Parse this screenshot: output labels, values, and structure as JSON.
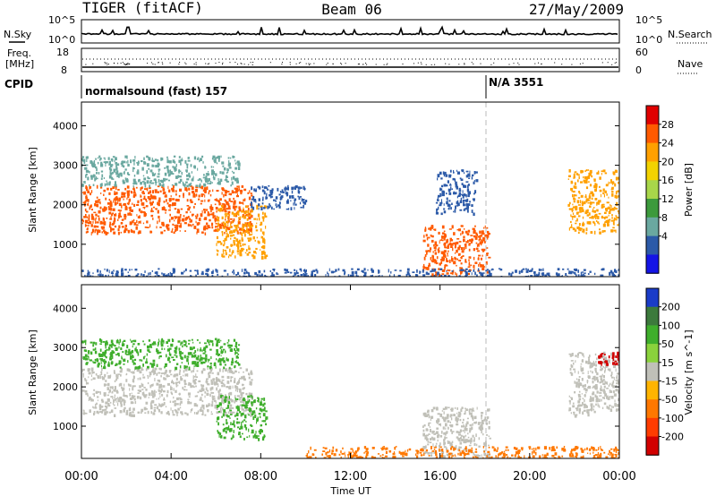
{
  "header": {
    "radar": "TIGER (fitACF)",
    "beam": "Beam 06",
    "date": "27/May/2009"
  },
  "top_panel": {
    "left_label": "N.Sky",
    "right_label": "N.Search",
    "left_ticks": [
      "10^5",
      "10^0"
    ],
    "right_ticks": [
      "10^5",
      "10^0"
    ]
  },
  "freq_panel": {
    "left_label_1": "Freq.",
    "left_label_2": "[MHz]",
    "right_label": "Nave",
    "left_ticks": [
      "18",
      "8"
    ],
    "right_ticks": [
      "60",
      "0"
    ]
  },
  "cpid_panel": {
    "label": "CPID",
    "mode_1": "normalsound (fast) 157",
    "mode_2": "N/A 3551",
    "mode_2_time_hours": 18.0
  },
  "chart_data": [
    {
      "type": "heatmap",
      "title": "",
      "xlabel": "",
      "ylabel": "Slant Range [km]",
      "xlim_hours": [
        0,
        24
      ],
      "ylim": [
        180,
        4600
      ],
      "yticks": [
        "1000",
        "2000",
        "3000",
        "4000"
      ],
      "colorbar": {
        "label": "Power [dB]",
        "ticks": [
          "28",
          "24",
          "20",
          "16",
          "12",
          "8",
          "4"
        ],
        "colors": [
          "#e00000",
          "#ff5a00",
          "#ffa000",
          "#f2d200",
          "#a8d64a",
          "#3c9a3c",
          "#6aa8a0",
          "#2c5aa8",
          "#1414e6"
        ]
      },
      "echo_regions": [
        {
          "t": [
            0.0,
            7.6
          ],
          "range_km": [
            1300,
            2500
          ],
          "level_dB": 28
        },
        {
          "t": [
            0.0,
            7.0
          ],
          "range_km": [
            2500,
            3250
          ],
          "level_dB": 10
        },
        {
          "t": [
            6.0,
            8.2
          ],
          "range_km": [
            700,
            2000
          ],
          "level_dB": 24
        },
        {
          "t": [
            7.5,
            10.0
          ],
          "range_km": [
            1900,
            2500
          ],
          "level_dB": 6
        },
        {
          "t": [
            15.2,
            18.2
          ],
          "range_km": [
            250,
            1500
          ],
          "level_dB": 28
        },
        {
          "t": [
            15.8,
            17.6
          ],
          "range_km": [
            1800,
            2900
          ],
          "level_dB": 6
        },
        {
          "t": [
            21.7,
            24.0
          ],
          "range_km": [
            1300,
            2900
          ],
          "level_dB": 24
        },
        {
          "t": [
            0.0,
            24.0
          ],
          "range_km": [
            200,
            400
          ],
          "level_dB": 4
        }
      ]
    },
    {
      "type": "heatmap",
      "title": "",
      "xlabel": "Time UT",
      "ylabel": "Slant Range [km]",
      "xlim_hours": [
        0,
        24
      ],
      "ylim": [
        180,
        4600
      ],
      "yticks": [
        "1000",
        "2000",
        "3000",
        "4000"
      ],
      "xticks": [
        "00:00",
        "04:00",
        "08:00",
        "12:00",
        "16:00",
        "20:00",
        "00:00"
      ],
      "colorbar": {
        "label": "Velocity [m s^-1]",
        "ticks": [
          "200",
          "100",
          "50",
          "15",
          "-15",
          "-50",
          "-100",
          "-200"
        ],
        "colors": [
          "#1a3cc8",
          "#3c7a3c",
          "#3fae2c",
          "#8ad23c",
          "#c0c0b8",
          "#ffb400",
          "#ff7800",
          "#ff3c00",
          "#d20000"
        ]
      },
      "echo_regions": [
        {
          "t": [
            0.0,
            7.6
          ],
          "range_km": [
            1300,
            2500
          ],
          "velocity": 0
        },
        {
          "t": [
            6.0,
            8.2
          ],
          "range_km": [
            700,
            1800
          ],
          "velocity": 50
        },
        {
          "t": [
            0.0,
            7.0
          ],
          "range_km": [
            2500,
            3250
          ],
          "velocity": 60
        },
        {
          "t": [
            15.2,
            18.2
          ],
          "range_km": [
            250,
            1500
          ],
          "velocity": 0
        },
        {
          "t": [
            10.0,
            24.0
          ],
          "range_km": [
            200,
            500
          ],
          "velocity": -40
        },
        {
          "t": [
            21.7,
            24.0
          ],
          "range_km": [
            1300,
            2900
          ],
          "velocity": 0
        },
        {
          "t": [
            23.0,
            24.0
          ],
          "range_km": [
            2600,
            2900
          ],
          "velocity": -200
        }
      ]
    }
  ]
}
